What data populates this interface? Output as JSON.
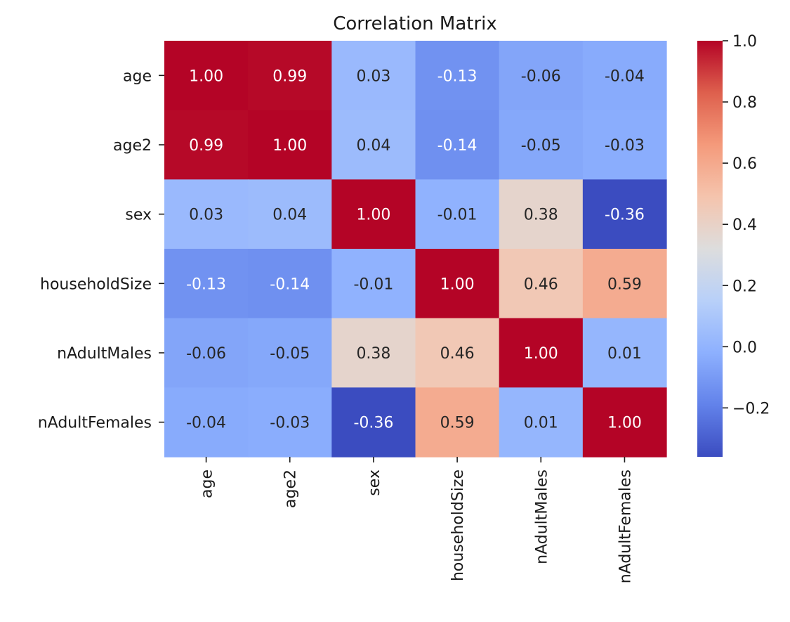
{
  "chart_data": {
    "type": "heatmap",
    "title": "Correlation Matrix",
    "x_labels": [
      "age",
      "age2",
      "sex",
      "householdSize",
      "nAdultMales",
      "nAdultFemales"
    ],
    "y_labels": [
      "age",
      "age2",
      "sex",
      "householdSize",
      "nAdultMales",
      "nAdultFemales"
    ],
    "values": [
      [
        1.0,
        0.99,
        0.03,
        -0.13,
        -0.06,
        -0.04
      ],
      [
        0.99,
        1.0,
        0.04,
        -0.14,
        -0.05,
        -0.03
      ],
      [
        0.03,
        0.04,
        1.0,
        -0.01,
        0.38,
        -0.36
      ],
      [
        -0.13,
        -0.14,
        -0.01,
        1.0,
        0.46,
        0.59
      ],
      [
        -0.06,
        -0.05,
        0.38,
        0.46,
        1.0,
        0.01
      ],
      [
        -0.04,
        -0.03,
        -0.36,
        0.59,
        0.01,
        1.0
      ]
    ],
    "annotation_format": "0.00",
    "colormap": "coolwarm",
    "colorbar": {
      "vmin": -0.36,
      "vmax": 1.0,
      "ticks": [
        -0.2,
        0.0,
        0.2,
        0.4,
        0.6,
        0.8,
        1.0
      ],
      "tick_labels": [
        "−0.2",
        "0.0",
        "0.2",
        "0.4",
        "0.6",
        "0.8",
        "1.0"
      ]
    },
    "grid": false,
    "legend": "right"
  }
}
